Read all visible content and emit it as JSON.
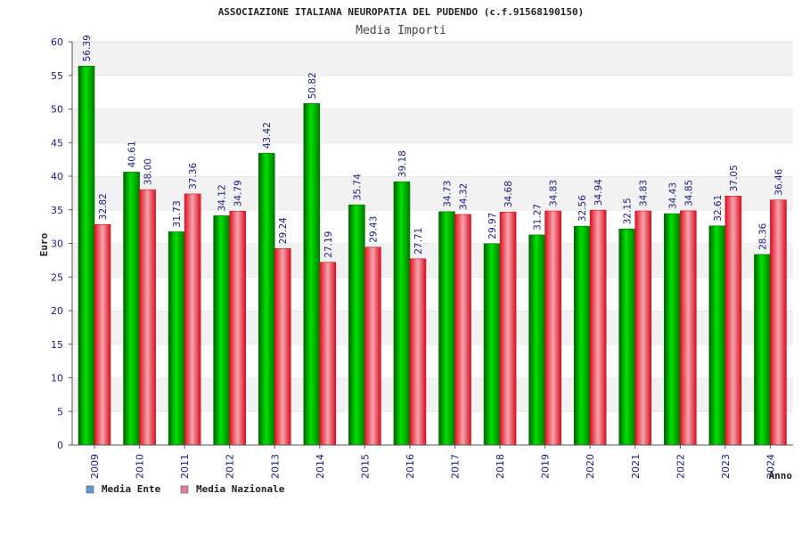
{
  "chart_data": {
    "type": "bar",
    "title": "ASSOCIAZIONE ITALIANA NEUROPATIA DEL PUDENDO (c.f.91568190150)",
    "subtitle": "Media Importi",
    "xlabel": "Anno",
    "ylabel": "Euro",
    "ylim": [
      0,
      60
    ],
    "yticks": [
      "0",
      "5",
      "10",
      "15",
      "20",
      "25",
      "30",
      "35",
      "40",
      "45",
      "50",
      "55",
      "60"
    ],
    "grid": "horizontal bands",
    "legend_position": "bottom-left",
    "categories": [
      "2009",
      "2010",
      "2011",
      "2012",
      "2013",
      "2014",
      "2015",
      "2016",
      "2017",
      "2018",
      "2019",
      "2020",
      "2021",
      "2022",
      "2023",
      "2024"
    ],
    "series": [
      {
        "name": "Media Ente",
        "color": "#00c000",
        "legend_color": "#5b9bd5",
        "values": [
          56.39,
          40.61,
          31.73,
          34.12,
          43.42,
          50.82,
          35.74,
          39.18,
          34.73,
          29.97,
          31.27,
          32.56,
          32.15,
          34.43,
          32.61,
          28.36
        ],
        "labels": [
          "56.39",
          "40.61",
          "31.73",
          "34.12",
          "43.42",
          "50.82",
          "35.74",
          "39.18",
          "34.73",
          "29.97",
          "31.27",
          "32.56",
          "32.15",
          "34.43",
          "32.61",
          "28.36"
        ]
      },
      {
        "name": "Media Nazionale",
        "color": "#e8303c",
        "legend_color": "#e87aa8",
        "values": [
          32.82,
          38.0,
          37.36,
          34.79,
          29.24,
          27.19,
          29.43,
          27.71,
          34.32,
          34.68,
          34.83,
          34.94,
          34.83,
          34.85,
          37.05,
          36.46
        ],
        "labels": [
          "32.82",
          "38.00",
          "37.36",
          "34.79",
          "29.24",
          "27.19",
          "29.43",
          "27.71",
          "34.32",
          "34.68",
          "34.83",
          "34.94",
          "34.83",
          "34.85",
          "37.05",
          "36.46"
        ]
      }
    ]
  }
}
